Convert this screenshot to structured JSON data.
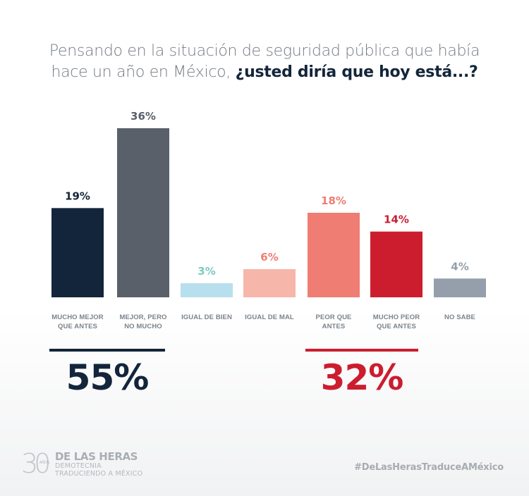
{
  "title": {
    "line1": "Pensando en la situación de seguridad pública que había",
    "line2_regular": "hace un año en México, ",
    "line2_bold": "¿usted diría que hoy está...?"
  },
  "chart_data": {
    "type": "bar",
    "title": "Pensando en la situación de seguridad pública que había hace un año en México, ¿usted diría que hoy está...?",
    "xlabel": "",
    "ylabel": "",
    "ylim": [
      0,
      36
    ],
    "grid": false,
    "categories": [
      [
        "MUCHO MEJOR",
        "QUE ANTES"
      ],
      [
        "MEJOR, PERO",
        "NO MUCHO"
      ],
      [
        "IGUAL DE BIEN"
      ],
      [
        "IGUAL DE MAL"
      ],
      [
        "PEOR QUE",
        "ANTES"
      ],
      [
        "MUCHO PEOR",
        "QUE ANTES"
      ],
      [
        "NO SABE"
      ]
    ],
    "values": [
      19,
      36,
      3,
      6,
      18,
      14,
      4
    ],
    "value_labels": [
      "19%",
      "36%",
      "3%",
      "6%",
      "18%",
      "14%",
      "4%"
    ],
    "bar_colors": [
      "#13253a",
      "#59606a",
      "#b8dfed",
      "#f7b6aa",
      "#f07d73",
      "#cc1d2f",
      "#949fab"
    ],
    "label_colors": [
      "#13253a",
      "#59606a",
      "#7ccac3",
      "#f07d73",
      "#f07d73",
      "#cc1d2f",
      "#949fab"
    ],
    "groups": [
      {
        "name": "better",
        "value": 55,
        "label": "55%",
        "color": "#13253a",
        "covers": [
          0,
          1
        ]
      },
      {
        "name": "worse",
        "value": 32,
        "label": "32%",
        "color": "#cc1d2f",
        "covers": [
          4,
          5
        ]
      }
    ]
  },
  "footer": {
    "logo_number": "30",
    "logo_anos": "AÑOS",
    "logo_main": "DE LAS HERAS",
    "logo_sub1": "DEMOTECNIA",
    "logo_sub2": "TRADUCIENDO A MÉXICO",
    "hashtag": "#DeLasHerasTraduceAMéxico"
  }
}
